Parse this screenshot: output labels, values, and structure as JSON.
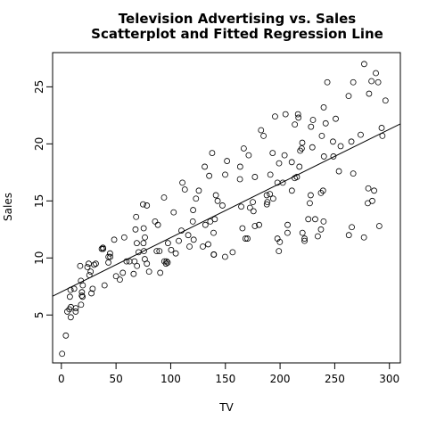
{
  "chart_data": {
    "type": "scatter",
    "title": [
      "Television Advertising vs. Sales",
      "Scatterplot and Fitted Regression Line"
    ],
    "xlabel": "TV",
    "ylabel": "Sales",
    "xlim": [
      -8,
      310
    ],
    "ylim": [
      0.8,
      28
    ],
    "xticks": [
      "0",
      "50",
      "100",
      "150",
      "200",
      "250",
      "300"
    ],
    "yticks": [
      "5",
      "10",
      "15",
      "20",
      "25"
    ],
    "grid": false,
    "regression_line": {
      "intercept": 7.03,
      "slope": 0.0475
    },
    "points": [
      [
        0.7,
        1.6
      ],
      [
        4.1,
        3.2
      ],
      [
        5.4,
        5.3
      ],
      [
        7.3,
        5.5
      ],
      [
        7.8,
        6.6
      ],
      [
        8.4,
        7.2
      ],
      [
        8.6,
        4.8
      ],
      [
        8.7,
        5.7
      ],
      [
        11.7,
        7.3
      ],
      [
        13.1,
        5.3
      ],
      [
        13.2,
        5.6
      ],
      [
        17.2,
        9.3
      ],
      [
        17.9,
        8.0
      ],
      [
        18.7,
        6.7
      ],
      [
        18.8,
        7.0
      ],
      [
        19.4,
        6.6
      ],
      [
        19.6,
        7.6
      ],
      [
        18.0,
        5.9
      ],
      [
        23.8,
        9.2
      ],
      [
        25.0,
        9.5
      ],
      [
        25.6,
        8.5
      ],
      [
        26.8,
        8.8
      ],
      [
        27.5,
        6.9
      ],
      [
        28.6,
        7.3
      ],
      [
        30.0,
        9.4
      ],
      [
        31.5,
        9.5
      ],
      [
        36.9,
        10.8
      ],
      [
        38.0,
        10.9
      ],
      [
        38.2,
        10.8
      ],
      [
        39.5,
        7.6
      ],
      [
        43.0,
        9.6
      ],
      [
        43.1,
        10.1
      ],
      [
        44.5,
        10.4
      ],
      [
        44.7,
        10.1
      ],
      [
        48.3,
        11.6
      ],
      [
        50.0,
        8.4
      ],
      [
        53.5,
        8.1
      ],
      [
        56.2,
        8.7
      ],
      [
        57.5,
        11.8
      ],
      [
        59.6,
        9.7
      ],
      [
        62.3,
        9.7
      ],
      [
        66.1,
        8.6
      ],
      [
        66.9,
        9.7
      ],
      [
        67.8,
        12.5
      ],
      [
        68.4,
        13.6
      ],
      [
        69.0,
        11.3
      ],
      [
        69.2,
        9.3
      ],
      [
        70.6,
        10.5
      ],
      [
        74.7,
        14.7
      ],
      [
        75.1,
        11.3
      ],
      [
        75.3,
        12.6
      ],
      [
        75.5,
        10.6
      ],
      [
        76.3,
        9.9
      ],
      [
        76.4,
        11.8
      ],
      [
        78.2,
        9.5
      ],
      [
        78.2,
        14.6
      ],
      [
        80.2,
        8.8
      ],
      [
        85.7,
        13.2
      ],
      [
        87.2,
        10.6
      ],
      [
        88.3,
        12.9
      ],
      [
        89.7,
        10.6
      ],
      [
        90.4,
        8.7
      ],
      [
        93.9,
        15.3
      ],
      [
        94.2,
        9.7
      ],
      [
        95.7,
        9.5
      ],
      [
        96.2,
        9.7
      ],
      [
        97.2,
        9.6
      ],
      [
        97.5,
        11.3
      ],
      [
        100.4,
        10.7
      ],
      [
        102.7,
        14.0
      ],
      [
        104.6,
        10.4
      ],
      [
        107.4,
        11.5
      ],
      [
        109.8,
        12.4
      ],
      [
        110.7,
        16.6
      ],
      [
        112.9,
        16.0
      ],
      [
        116.0,
        12.0
      ],
      [
        117.2,
        11.0
      ],
      [
        120.2,
        13.2
      ],
      [
        120.5,
        14.2
      ],
      [
        121.0,
        11.6
      ],
      [
        123.1,
        15.2
      ],
      [
        125.7,
        15.9
      ],
      [
        129.4,
        11.0
      ],
      [
        131.1,
        18.0
      ],
      [
        131.7,
        12.9
      ],
      [
        134.3,
        11.2
      ],
      [
        135.2,
        17.2
      ],
      [
        136.2,
        13.2
      ],
      [
        137.9,
        19.2
      ],
      [
        139.2,
        12.2
      ],
      [
        139.3,
        10.3
      ],
      [
        139.5,
        10.3
      ],
      [
        140.3,
        13.4
      ],
      [
        141.3,
        15.5
      ],
      [
        142.9,
        15.0
      ],
      [
        147.3,
        14.6
      ],
      [
        149.7,
        10.1
      ],
      [
        149.8,
        17.3
      ],
      [
        151.5,
        18.5
      ],
      [
        156.6,
        10.5
      ],
      [
        163.3,
        16.9
      ],
      [
        163.5,
        18.0
      ],
      [
        164.5,
        14.5
      ],
      [
        165.6,
        12.6
      ],
      [
        166.8,
        19.6
      ],
      [
        168.4,
        11.7
      ],
      [
        170.2,
        11.7
      ],
      [
        171.3,
        19.0
      ],
      [
        172.5,
        14.4
      ],
      [
        175.1,
        14.9
      ],
      [
        175.7,
        14.1
      ],
      [
        177.0,
        12.8
      ],
      [
        177.0,
        17.1
      ],
      [
        180.8,
        12.9
      ],
      [
        182.6,
        21.2
      ],
      [
        184.9,
        20.7
      ],
      [
        187.8,
        15.5
      ],
      [
        187.9,
        14.7
      ],
      [
        188.4,
        14.9
      ],
      [
        190.7,
        15.6
      ],
      [
        191.1,
        17.3
      ],
      [
        193.2,
        19.2
      ],
      [
        193.7,
        15.2
      ],
      [
        195.4,
        22.4
      ],
      [
        197.6,
        11.7
      ],
      [
        197.6,
        16.6
      ],
      [
        198.9,
        10.6
      ],
      [
        199.1,
        18.3
      ],
      [
        199.8,
        11.4
      ],
      [
        202.5,
        16.6
      ],
      [
        204.1,
        19.0
      ],
      [
        205.0,
        22.6
      ],
      [
        206.8,
        12.2
      ],
      [
        206.9,
        12.9
      ],
      [
        210.7,
        18.4
      ],
      [
        210.8,
        15.9
      ],
      [
        213.4,
        17.0
      ],
      [
        213.5,
        21.7
      ],
      [
        215.4,
        17.1
      ],
      [
        216.4,
        22.6
      ],
      [
        216.8,
        22.3
      ],
      [
        217.7,
        18.0
      ],
      [
        218.4,
        19.4
      ],
      [
        219.8,
        19.6
      ],
      [
        220.3,
        20.1
      ],
      [
        220.5,
        12.2
      ],
      [
        222.4,
        11.5
      ],
      [
        222.4,
        11.7
      ],
      [
        225.8,
        13.4
      ],
      [
        227.2,
        14.8
      ],
      [
        228.0,
        15.5
      ],
      [
        228.3,
        21.5
      ],
      [
        229.5,
        19.7
      ],
      [
        230.1,
        22.1
      ],
      [
        232.1,
        13.4
      ],
      [
        234.5,
        11.9
      ],
      [
        237.4,
        12.5
      ],
      [
        237.4,
        15.7
      ],
      [
        238.2,
        20.7
      ],
      [
        239.3,
        15.9
      ],
      [
        239.8,
        13.2
      ],
      [
        239.9,
        23.2
      ],
      [
        240.1,
        18.9
      ],
      [
        241.7,
        21.8
      ],
      [
        243.2,
        25.4
      ],
      [
        248.4,
        20.2
      ],
      [
        248.8,
        18.9
      ],
      [
        250.9,
        22.2
      ],
      [
        253.8,
        17.6
      ],
      [
        255.4,
        19.8
      ],
      [
        262.7,
        24.2
      ],
      [
        262.9,
        12.0
      ],
      [
        265.2,
        20.2
      ],
      [
        265.6,
        12.7
      ],
      [
        266.9,
        17.4
      ],
      [
        266.9,
        25.4
      ],
      [
        273.7,
        20.8
      ],
      [
        276.7,
        11.8
      ],
      [
        276.9,
        27.0
      ],
      [
        280.2,
        14.8
      ],
      [
        280.7,
        16.1
      ],
      [
        281.4,
        24.4
      ],
      [
        283.6,
        25.5
      ],
      [
        284.3,
        15.0
      ],
      [
        286.0,
        15.9
      ],
      [
        287.6,
        26.2
      ],
      [
        289.7,
        25.4
      ],
      [
        290.7,
        12.8
      ],
      [
        292.9,
        21.4
      ],
      [
        293.6,
        20.7
      ],
      [
        296.4,
        23.8
      ]
    ]
  }
}
